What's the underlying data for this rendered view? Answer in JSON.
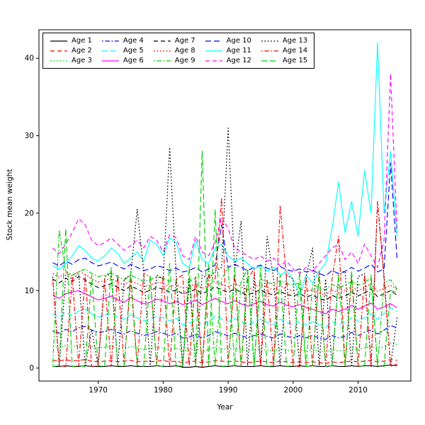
{
  "figure": {
    "background": "#ffffff"
  },
  "chart_data": {
    "type": "line",
    "title": "",
    "xlabel": "Year",
    "ylabel": "Stock mean weight",
    "ylim": [
      0,
      42
    ],
    "x_ticks": [
      1970,
      1980,
      1990,
      2000,
      2010
    ],
    "y_ticks": [
      0,
      10,
      20,
      30,
      40
    ],
    "grid": false,
    "plot_border": true,
    "legend_position": "top-left-inside",
    "legend_columns": 5,
    "legend_fill_order": "column-major",
    "years": [
      1963,
      1964,
      1965,
      1966,
      1967,
      1968,
      1969,
      1970,
      1971,
      1972,
      1973,
      1974,
      1975,
      1976,
      1977,
      1978,
      1979,
      1980,
      1981,
      1982,
      1983,
      1984,
      1985,
      1986,
      1987,
      1988,
      1989,
      1990,
      1991,
      1992,
      1993,
      1994,
      1995,
      1996,
      1997,
      1998,
      1999,
      2000,
      2001,
      2002,
      2003,
      2004,
      2005,
      2006,
      2007,
      2008,
      2009,
      2010,
      2011,
      2012,
      2013,
      2014,
      2015,
      2016
    ],
    "series": [
      {
        "name": "Age 1",
        "color": "#000000",
        "linestyle": "solid",
        "values": [
          0.2,
          0.2,
          0.3,
          0.2,
          0.2,
          0.3,
          0.2,
          0.2,
          0.2,
          0.3,
          0.2,
          0.2,
          0.3,
          0.2,
          0.2,
          0.2,
          0.3,
          0.2,
          0.2,
          0.3,
          0.1,
          0.1,
          0.2,
          0.1,
          0.2,
          0.3,
          0.2,
          0.2,
          0.3,
          0.2,
          0.2,
          0.2,
          0.3,
          0.2,
          0.2,
          0.3,
          0.2,
          0.2,
          0.3,
          0.2,
          0.3,
          0.2,
          0.2,
          0.3,
          0.2,
          0.2,
          0.3,
          0.2,
          0.3,
          0.3,
          0.2,
          0.3,
          0.4,
          0.3
        ]
      },
      {
        "name": "Age 2",
        "color": "#FF0000",
        "linestyle": "dashed",
        "values": [
          1.0,
          0.9,
          1.1,
          0.9,
          1.0,
          1.1,
          0.9,
          0.8,
          0.9,
          1.0,
          0.8,
          0.9,
          1.0,
          0.8,
          0.9,
          0.8,
          0.9,
          1.0,
          0.8,
          0.9,
          0.7,
          0.8,
          0.9,
          0.7,
          0.8,
          1.0,
          0.9,
          0.8,
          0.9,
          0.8,
          0.7,
          0.8,
          0.9,
          0.8,
          0.7,
          0.9,
          0.8,
          0.7,
          0.8,
          0.7,
          0.8,
          0.7,
          0.6,
          0.8,
          0.7,
          0.8,
          0.9,
          0.8,
          0.9,
          1.0,
          0.8,
          0.9,
          1.1,
          1.0
        ]
      },
      {
        "name": "Age 3",
        "color": "#00CD00",
        "linestyle": "dotted",
        "values": [
          2.8,
          2.6,
          2.9,
          2.7,
          3.0,
          3.1,
          2.8,
          2.6,
          2.7,
          2.9,
          2.6,
          2.5,
          2.8,
          2.6,
          2.4,
          2.5,
          2.7,
          2.6,
          2.4,
          2.6,
          2.2,
          2.3,
          2.5,
          2.2,
          2.4,
          2.7,
          2.5,
          2.4,
          2.6,
          2.4,
          2.2,
          2.4,
          2.5,
          2.3,
          2.2,
          2.5,
          2.3,
          2.2,
          2.4,
          2.2,
          2.4,
          2.2,
          2.1,
          2.4,
          2.2,
          2.3,
          2.6,
          2.4,
          2.6,
          2.8,
          2.5,
          2.8,
          3.2,
          3.0
        ]
      },
      {
        "name": "Age 4",
        "color": "#0000FF",
        "linestyle": "dotdash",
        "values": [
          4.8,
          4.5,
          5.0,
          4.7,
          5.2,
          5.4,
          4.9,
          4.6,
          4.7,
          5.0,
          4.6,
          4.4,
          4.8,
          4.5,
          4.2,
          4.4,
          4.7,
          4.5,
          4.2,
          4.5,
          3.9,
          4.0,
          4.3,
          3.9,
          4.2,
          4.7,
          4.4,
          4.2,
          4.5,
          4.2,
          3.9,
          4.2,
          4.4,
          4.1,
          3.9,
          4.4,
          4.1,
          3.9,
          4.2,
          3.9,
          4.2,
          3.9,
          3.7,
          4.2,
          3.9,
          4.1,
          4.6,
          4.2,
          4.6,
          4.9,
          4.4,
          4.9,
          5.5,
          5.2
        ]
      },
      {
        "name": "Age 5",
        "color": "#00FFFF",
        "linestyle": "longdash",
        "values": [
          7.0,
          6.6,
          7.2,
          6.8,
          7.4,
          7.6,
          7.0,
          6.6,
          6.8,
          7.1,
          6.6,
          6.3,
          6.9,
          6.5,
          6.1,
          6.3,
          6.7,
          6.5,
          6.1,
          6.4,
          5.6,
          5.8,
          6.2,
          5.6,
          6.0,
          6.7,
          6.3,
          6.0,
          6.4,
          6.0,
          5.6,
          6.0,
          6.3,
          5.9,
          5.6,
          6.3,
          5.9,
          5.6,
          6.0,
          5.6,
          6.0,
          5.6,
          5.3,
          6.0,
          5.6,
          5.9,
          6.5,
          6.0,
          6.5,
          7.0,
          6.3,
          7.0,
          7.8,
          7.3
        ]
      },
      {
        "name": "Age 6",
        "color": "#FF00FF",
        "linestyle": "solid",
        "values": [
          9.4,
          9.0,
          9.6,
          9.8,
          10.0,
          9.6,
          9.2,
          8.8,
          9.0,
          9.3,
          8.8,
          8.5,
          9.1,
          8.7,
          8.3,
          8.5,
          8.9,
          8.7,
          8.3,
          8.6,
          8.2,
          8.4,
          8.8,
          8.2,
          8.6,
          9.0,
          8.6,
          8.3,
          8.7,
          8.3,
          8.0,
          8.3,
          8.6,
          8.2,
          8.0,
          8.5,
          8.1,
          7.9,
          8.2,
          7.8,
          7.6,
          7.3,
          7.0,
          7.6,
          7.3,
          7.6,
          8.1,
          7.6,
          8.0,
          8.4,
          7.6,
          7.9,
          8.3,
          7.8
        ]
      },
      {
        "name": "Age 7",
        "color": "#000000",
        "linestyle": "dashed",
        "values": [
          11.5,
          11.0,
          11.6,
          11.2,
          11.8,
          11.4,
          10.8,
          10.4,
          10.6,
          10.9,
          10.4,
          10.0,
          10.6,
          10.2,
          9.8,
          10.0,
          10.4,
          10.2,
          9.8,
          10.1,
          9.6,
          9.8,
          10.2,
          9.6,
          10.0,
          10.5,
          10.1,
          9.8,
          10.2,
          9.8,
          9.4,
          9.8,
          10.1,
          9.7,
          9.4,
          9.9,
          9.5,
          9.3,
          9.6,
          9.2,
          9.4,
          9.0,
          8.7,
          9.4,
          9.0,
          9.3,
          9.8,
          9.3,
          9.7,
          10.2,
          9.2,
          9.6,
          10.0,
          9.4
        ]
      },
      {
        "name": "Age 8",
        "color": "#FF0000",
        "linestyle": "dotted",
        "values": [
          12.2,
          11.7,
          12.3,
          11.9,
          12.5,
          12.1,
          11.5,
          11.1,
          11.3,
          11.6,
          11.1,
          10.7,
          11.3,
          10.9,
          10.5,
          10.7,
          11.1,
          10.9,
          10.5,
          10.8,
          10.3,
          10.5,
          10.9,
          10.3,
          10.7,
          11.2,
          10.8,
          10.5,
          10.9,
          10.5,
          10.1,
          10.5,
          10.8,
          10.4,
          10.1,
          10.6,
          10.2,
          10.0,
          10.3,
          9.9,
          10.1,
          9.7,
          9.4,
          10.1,
          9.7,
          10.0,
          10.5,
          10.0,
          10.4,
          10.9,
          9.9,
          10.3,
          10.7,
          10.1
        ]
      },
      {
        "name": "Age 9",
        "color": "#00CD00",
        "linestyle": "dotdash",
        "values": [
          0.3,
          17.8,
          12.5,
          12.0,
          12.4,
          12.8,
          12.2,
          11.8,
          12.0,
          12.3,
          11.8,
          11.4,
          12.0,
          11.6,
          11.2,
          11.4,
          11.8,
          11.6,
          11.2,
          11.5,
          0.2,
          11.2,
          11.6,
          0.2,
          13.5,
          0.3,
          11.5,
          13.0,
          0.2,
          11.2,
          12.8,
          0.3,
          11.5,
          11.1,
          10.8,
          11.3,
          10.9,
          10.7,
          11.0,
          0.3,
          10.8,
          10.4,
          10.1,
          10.8,
          10.4,
          10.7,
          11.2,
          10.7,
          11.1,
          11.6,
          0.4,
          11.0,
          11.4,
          10.2
        ]
      },
      {
        "name": "Age 10",
        "color": "#0000FF",
        "linestyle": "longdash",
        "values": [
          13.6,
          13.2,
          13.8,
          13.4,
          14.0,
          14.2,
          13.6,
          13.2,
          13.4,
          13.7,
          13.2,
          12.8,
          13.4,
          13.0,
          12.6,
          12.8,
          13.2,
          13.0,
          12.6,
          12.9,
          12.4,
          12.6,
          13.0,
          12.4,
          12.8,
          13.3,
          18.5,
          13.0,
          13.4,
          13.0,
          12.6,
          13.0,
          13.3,
          12.9,
          12.6,
          13.1,
          12.7,
          12.5,
          12.8,
          12.4,
          12.6,
          12.2,
          11.9,
          12.6,
          12.2,
          12.5,
          13.0,
          12.5,
          12.9,
          13.4,
          12.4,
          12.8,
          26.5,
          14.0
        ]
      },
      {
        "name": "Age 11",
        "color": "#00FFFF",
        "linestyle": "solid",
        "values": [
          13.2,
          12.8,
          13.5,
          14.5,
          15.8,
          15.2,
          14.2,
          13.8,
          14.5,
          15.5,
          14.8,
          13.5,
          14.2,
          15.0,
          13.8,
          16.5,
          16.0,
          14.5,
          16.8,
          16.2,
          13.5,
          13.0,
          16.5,
          14.0,
          13.5,
          15.5,
          16.0,
          14.5,
          13.8,
          14.2,
          13.5,
          12.8,
          13.2,
          12.5,
          13.0,
          12.0,
          12.5,
          11.5,
          9.5,
          12.0,
          11.0,
          12.5,
          13.5,
          18.0,
          24.0,
          17.5,
          21.5,
          17.0,
          25.5,
          20.0,
          42.0,
          20.0,
          28.0,
          17.0
        ]
      },
      {
        "name": "Age 12",
        "color": "#FF00FF",
        "linestyle": "dashed",
        "values": [
          15.5,
          14.8,
          16.0,
          17.5,
          19.3,
          18.5,
          16.5,
          15.8,
          16.2,
          16.8,
          16.0,
          15.2,
          15.8,
          16.5,
          15.5,
          17.0,
          16.5,
          15.0,
          17.2,
          16.8,
          14.5,
          14.0,
          17.0,
          15.0,
          14.5,
          16.2,
          19.5,
          18.0,
          15.5,
          15.0,
          14.5,
          14.0,
          14.5,
          13.8,
          14.2,
          13.2,
          13.8,
          12.8,
          12.2,
          13.0,
          12.5,
          13.5,
          14.5,
          15.5,
          16.0,
          14.0,
          15.0,
          13.5,
          16.0,
          14.5,
          13.0,
          16.5,
          38.0,
          17.5
        ]
      },
      {
        "name": "Age 13",
        "color": "#000000",
        "linestyle": "dotted",
        "values": [
          11.8,
          0.2,
          12.0,
          11.5,
          12.2,
          0.3,
          5.0,
          0.2,
          11.8,
          12.2,
          0.3,
          11.5,
          12.0,
          20.5,
          12.5,
          0.3,
          12.0,
          11.5,
          28.5,
          12.0,
          0.2,
          11.5,
          0.3,
          12.0,
          11.5,
          12.5,
          13.0,
          31.0,
          12.5,
          19.0,
          0.3,
          12.0,
          0.2,
          17.0,
          11.5,
          0.3,
          12.0,
          11.5,
          0.2,
          11.8,
          15.5,
          0.3,
          11.5,
          0.2,
          12.0,
          12.5,
          0.3,
          11.8,
          12.2,
          0.2,
          21.5,
          12.0,
          0.3,
          6.5
        ]
      },
      {
        "name": "Age 14",
        "color": "#FF0000",
        "linestyle": "dotdash",
        "values": [
          11.5,
          0.3,
          0.2,
          11.8,
          0.3,
          12.0,
          0.2,
          0.3,
          11.5,
          0.2,
          12.0,
          0.3,
          11.5,
          0.2,
          12.2,
          11.8,
          0.3,
          12.0,
          0.2,
          11.5,
          12.0,
          0.3,
          11.8,
          0.2,
          12.0,
          11.5,
          22.0,
          0.3,
          12.0,
          0.2,
          11.5,
          12.8,
          0.3,
          11.5,
          0.2,
          21.0,
          11.5,
          0.3,
          0.2,
          11.8,
          0.3,
          12.5,
          0.2,
          11.5,
          17.0,
          0.3,
          11.8,
          0.2,
          12.0,
          0.3,
          21.5,
          11.5,
          0.2,
          0.5
        ]
      },
      {
        "name": "Age 15",
        "color": "#00CD00",
        "linestyle": "longdash",
        "values": [
          0.2,
          0.3,
          18.0,
          0.2,
          0.3,
          0.2,
          12.0,
          0.3,
          0.2,
          13.0,
          0.3,
          0.2,
          12.5,
          0.3,
          0.2,
          12.0,
          0.3,
          0.2,
          13.5,
          0.2,
          0.3,
          13.0,
          0.2,
          28.0,
          0.3,
          20.5,
          0.2,
          0.3,
          13.0,
          0.2,
          12.5,
          0.3,
          13.0,
          0.2,
          0.3,
          12.0,
          0.2,
          0.3,
          12.5,
          0.2,
          0.3,
          12.0,
          0.2,
          0.3,
          12.0,
          0.2,
          12.5,
          0.3,
          0.2,
          12.0,
          0.3,
          0.2,
          10.0,
          9.8
        ]
      }
    ]
  }
}
